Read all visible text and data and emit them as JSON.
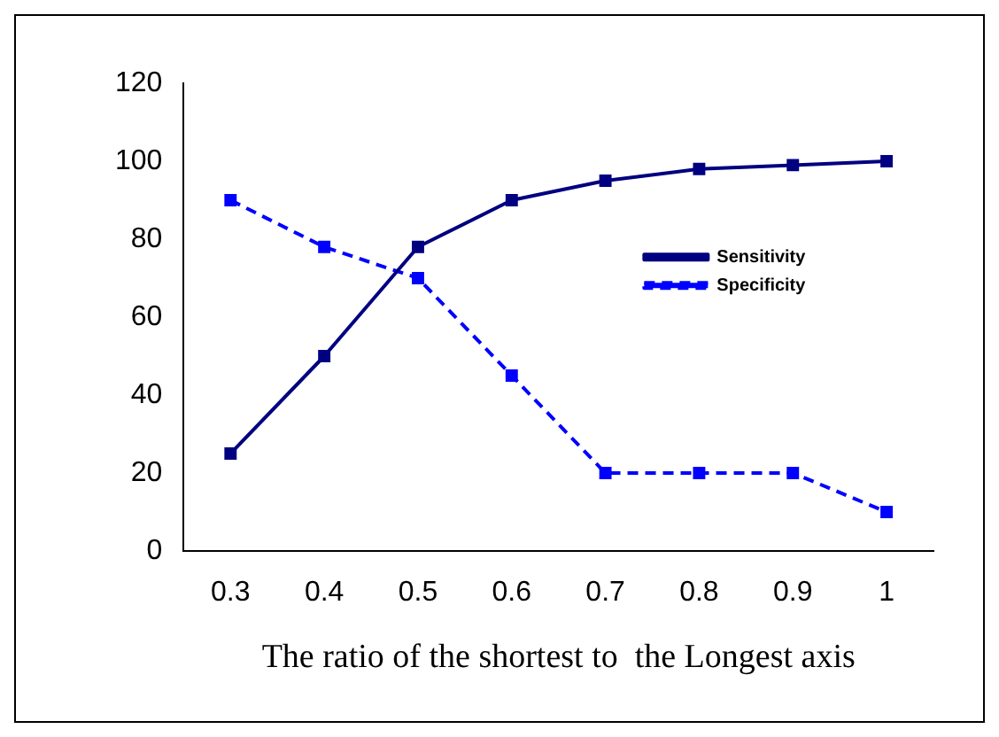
{
  "chart_data": {
    "type": "line",
    "xlabel": "The ratio of the shortest to  the Longest axis",
    "categories": [
      "0.3",
      "0.4",
      "0.5",
      "0.6",
      "0.7",
      "0.8",
      "0.9",
      "1"
    ],
    "series": [
      {
        "name": "Sensitivity",
        "color": "#000080",
        "values": [
          25,
          50,
          78,
          90,
          95,
          98,
          99,
          100
        ],
        "line_style": "solid"
      },
      {
        "name": "Specificity",
        "color": "#0000ff",
        "values": [
          90,
          78,
          70,
          45,
          20,
          20,
          20,
          10
        ],
        "line_style": "dashed"
      }
    ],
    "ylim": [
      0,
      120
    ],
    "yticks": [
      0,
      20,
      40,
      60,
      80,
      100,
      120
    ],
    "grid": false,
    "legend": "top right",
    "marker": "square"
  }
}
